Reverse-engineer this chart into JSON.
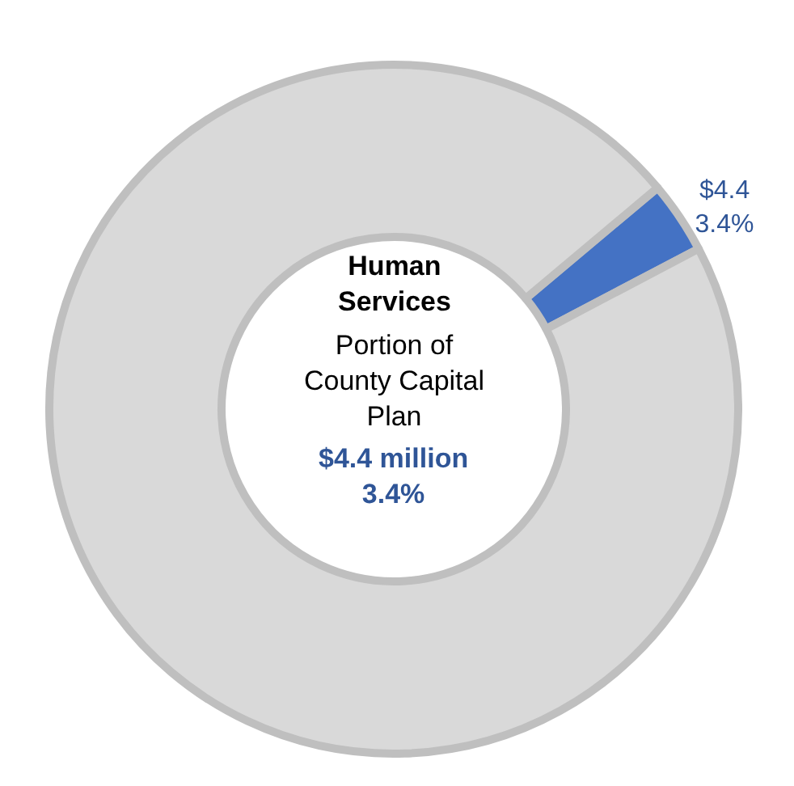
{
  "chart_data": {
    "type": "donut",
    "title": "Human\nServices",
    "subtitle": "Portion of\nCounty Capital\nPlan",
    "annotations": [
      "$4.4 million\n3.4%"
    ],
    "categories": [
      null,
      null
    ],
    "values": [
      3.4,
      96.6
    ],
    "colors": [
      "#4472c4",
      "#d9d9d9"
    ],
    "value_labels": [
      "$4.4\n3.4%",
      null
    ],
    "legend": false
  }
}
